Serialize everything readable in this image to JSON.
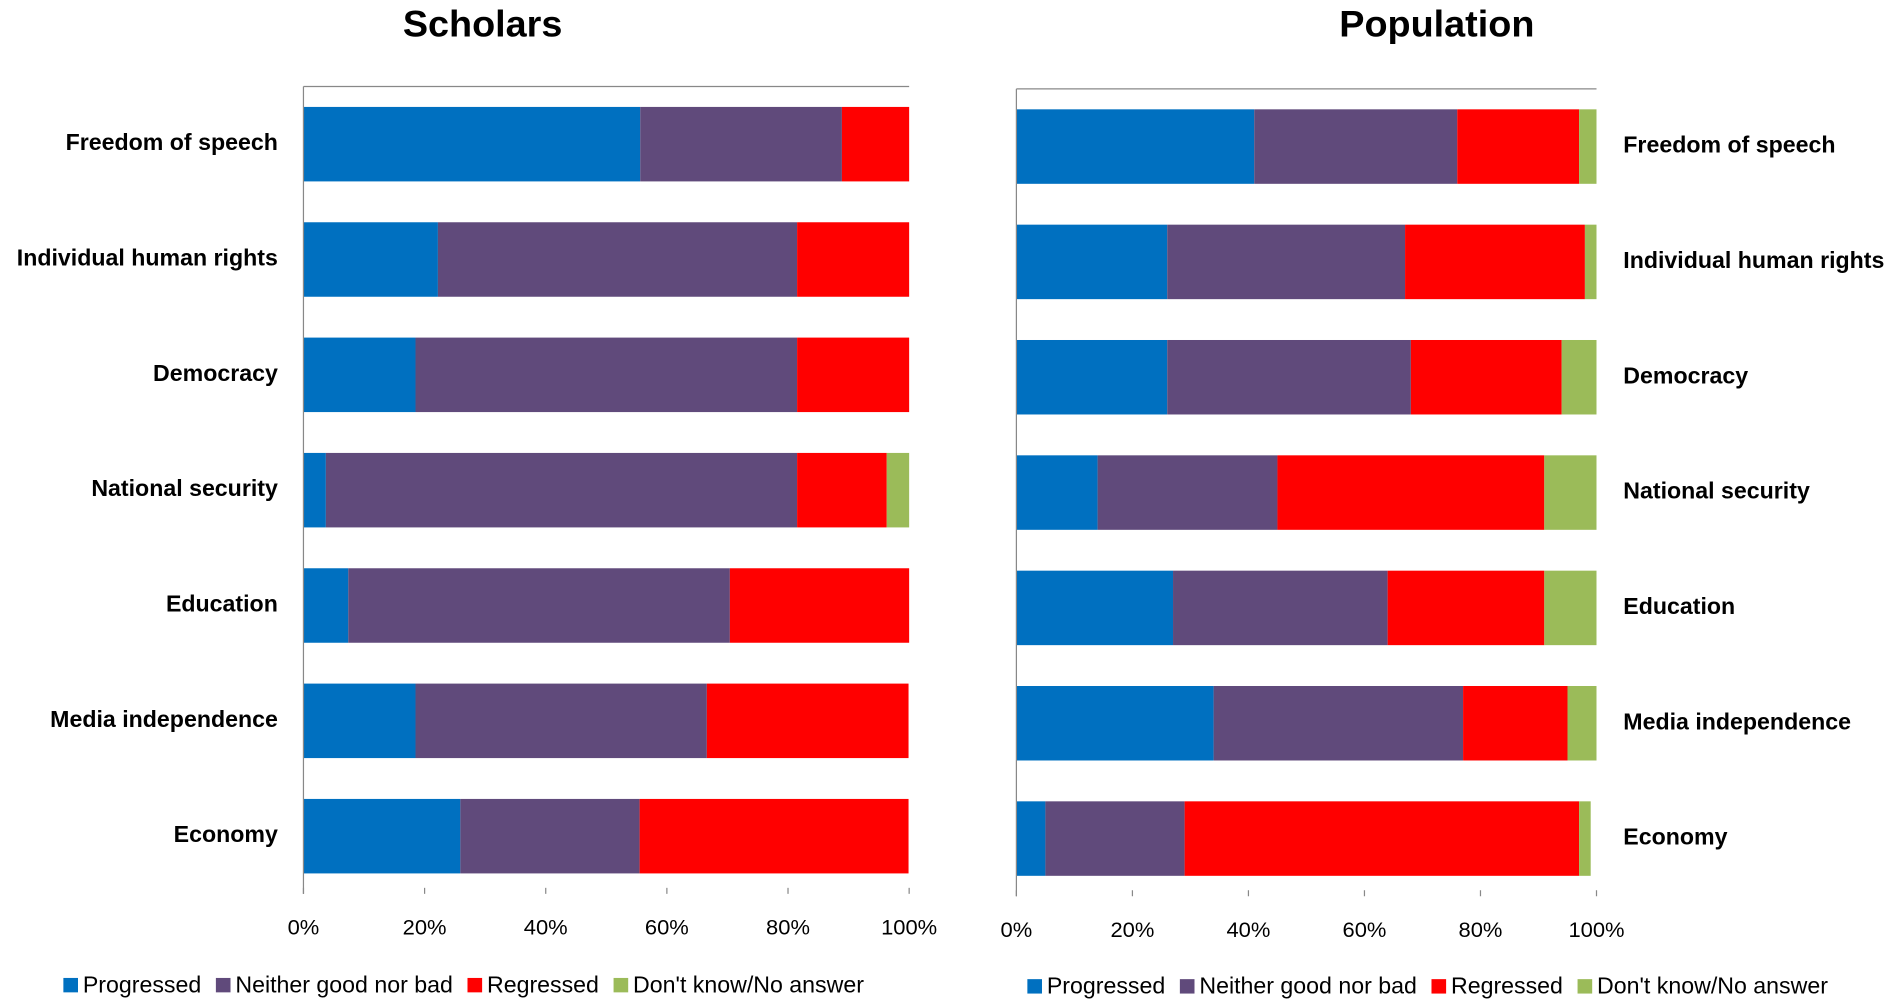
{
  "chart_data": [
    {
      "type": "stacked-barh",
      "title": "Scholars",
      "categories": [
        "Freedom of speech",
        "Individual human rights",
        "Democracy",
        "National security",
        "Education",
        "Media independence",
        "Economy"
      ],
      "series": [
        {
          "name": "Progressed",
          "color": "#0070c0",
          "values": [
            55.6,
            22.2,
            18.5,
            3.7,
            7.4,
            18.5,
            25.9
          ]
        },
        {
          "name": "Neither good nor bad",
          "color": "#604a7b",
          "values": [
            33.3,
            59.3,
            63.0,
            77.8,
            63.0,
            48.1,
            29.6
          ]
        },
        {
          "name": "Regressed",
          "color": "#ff0000",
          "values": [
            11.1,
            18.5,
            18.5,
            14.8,
            29.6,
            33.3,
            44.4
          ]
        },
        {
          "name": "Don't know/No answer",
          "color": "#9bbb59",
          "values": [
            0,
            0,
            0,
            3.7,
            0,
            0,
            0
          ]
        }
      ],
      "xlim": [
        0,
        100
      ],
      "xticks": [
        {
          "value": 0,
          "label": "0%"
        },
        {
          "value": 20,
          "label": "20%"
        },
        {
          "value": 40,
          "label": "40%"
        },
        {
          "value": 60,
          "label": "60%"
        },
        {
          "value": 80,
          "label": "80%"
        },
        {
          "value": 100,
          "label": "100%"
        }
      ]
    },
    {
      "type": "stacked-barh",
      "title": "Population",
      "categories": [
        "Freedom of speech",
        "Individual human rights",
        "Democracy",
        "National security",
        "Education",
        "Media independence",
        "Economy"
      ],
      "series": [
        {
          "name": "Progressed",
          "color": "#0070c0",
          "values": [
            41,
            26,
            26,
            14,
            27,
            34,
            5
          ]
        },
        {
          "name": "Neither good nor bad",
          "color": "#604a7b",
          "values": [
            35,
            41,
            42,
            31,
            37,
            43,
            24
          ]
        },
        {
          "name": "Regressed",
          "color": "#ff0000",
          "values": [
            21,
            31,
            26,
            46,
            27,
            18,
            68
          ]
        },
        {
          "name": "Don't know/No answer",
          "color": "#9bbb59",
          "values": [
            3,
            2,
            6,
            9,
            9,
            5,
            2
          ]
        }
      ],
      "xlim": [
        0,
        100
      ],
      "xticks": [
        {
          "value": 0,
          "label": "0%"
        },
        {
          "value": 20,
          "label": "20%"
        },
        {
          "value": 40,
          "label": "40%"
        },
        {
          "value": 60,
          "label": "60%"
        },
        {
          "value": 80,
          "label": "80%"
        },
        {
          "value": 100,
          "label": "100%"
        }
      ]
    }
  ]
}
